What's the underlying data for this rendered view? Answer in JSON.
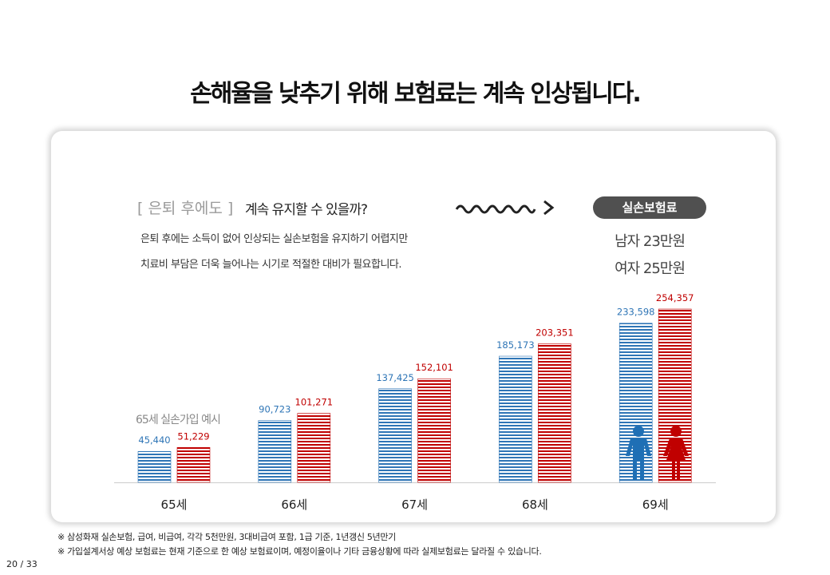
{
  "title": "손해율을 낮추기 위해 보험료는 계속 인상됩니다.",
  "intro": {
    "bracket": "[ 은퇴 후에도 ]",
    "question": "계속 유지할 수 있을까?",
    "lines": [
      "은퇴 후에는 소득이 없어 인상되는 실손보험을 유지하기 어렵지만",
      "치료비 부담은 더욱 늘어나는 시기로 적절한 대비가 필요합니다."
    ]
  },
  "badge": "실손보험료",
  "costs": [
    "남자 23만원",
    "여자 25만원"
  ],
  "chart_data": {
    "type": "bar",
    "note": "65세 실손가입 예시",
    "categories": [
      "65세",
      "66세",
      "67세",
      "68세",
      "69세"
    ],
    "series": [
      {
        "color": "#2e75b6",
        "values": [
          45440,
          90723,
          137425,
          185173,
          233598
        ],
        "value_labels": [
          "45,440",
          "90,723",
          "137,425",
          "185,173",
          "233,598"
        ]
      },
      {
        "color": "#c00000",
        "values": [
          51229,
          101271,
          152101,
          203351,
          254357
        ],
        "value_labels": [
          "51,229",
          "101,271",
          "152,101",
          "203,351",
          "254,357"
        ]
      }
    ]
  },
  "footnotes": [
    "※ 삼성화재 실손보험, 급여, 비급여, 각각 5천만원, 3대비급여 포함, 1급 기준, 1년갱신 5년만기",
    "※ 가입설계서상 예상 보험료는 현재 기준으로 한 예상 보험료이며, 예정이율이나 기타 금융상황에 따라 실제보험료는 달라질 수 있습니다."
  ],
  "page": "20 / 33"
}
